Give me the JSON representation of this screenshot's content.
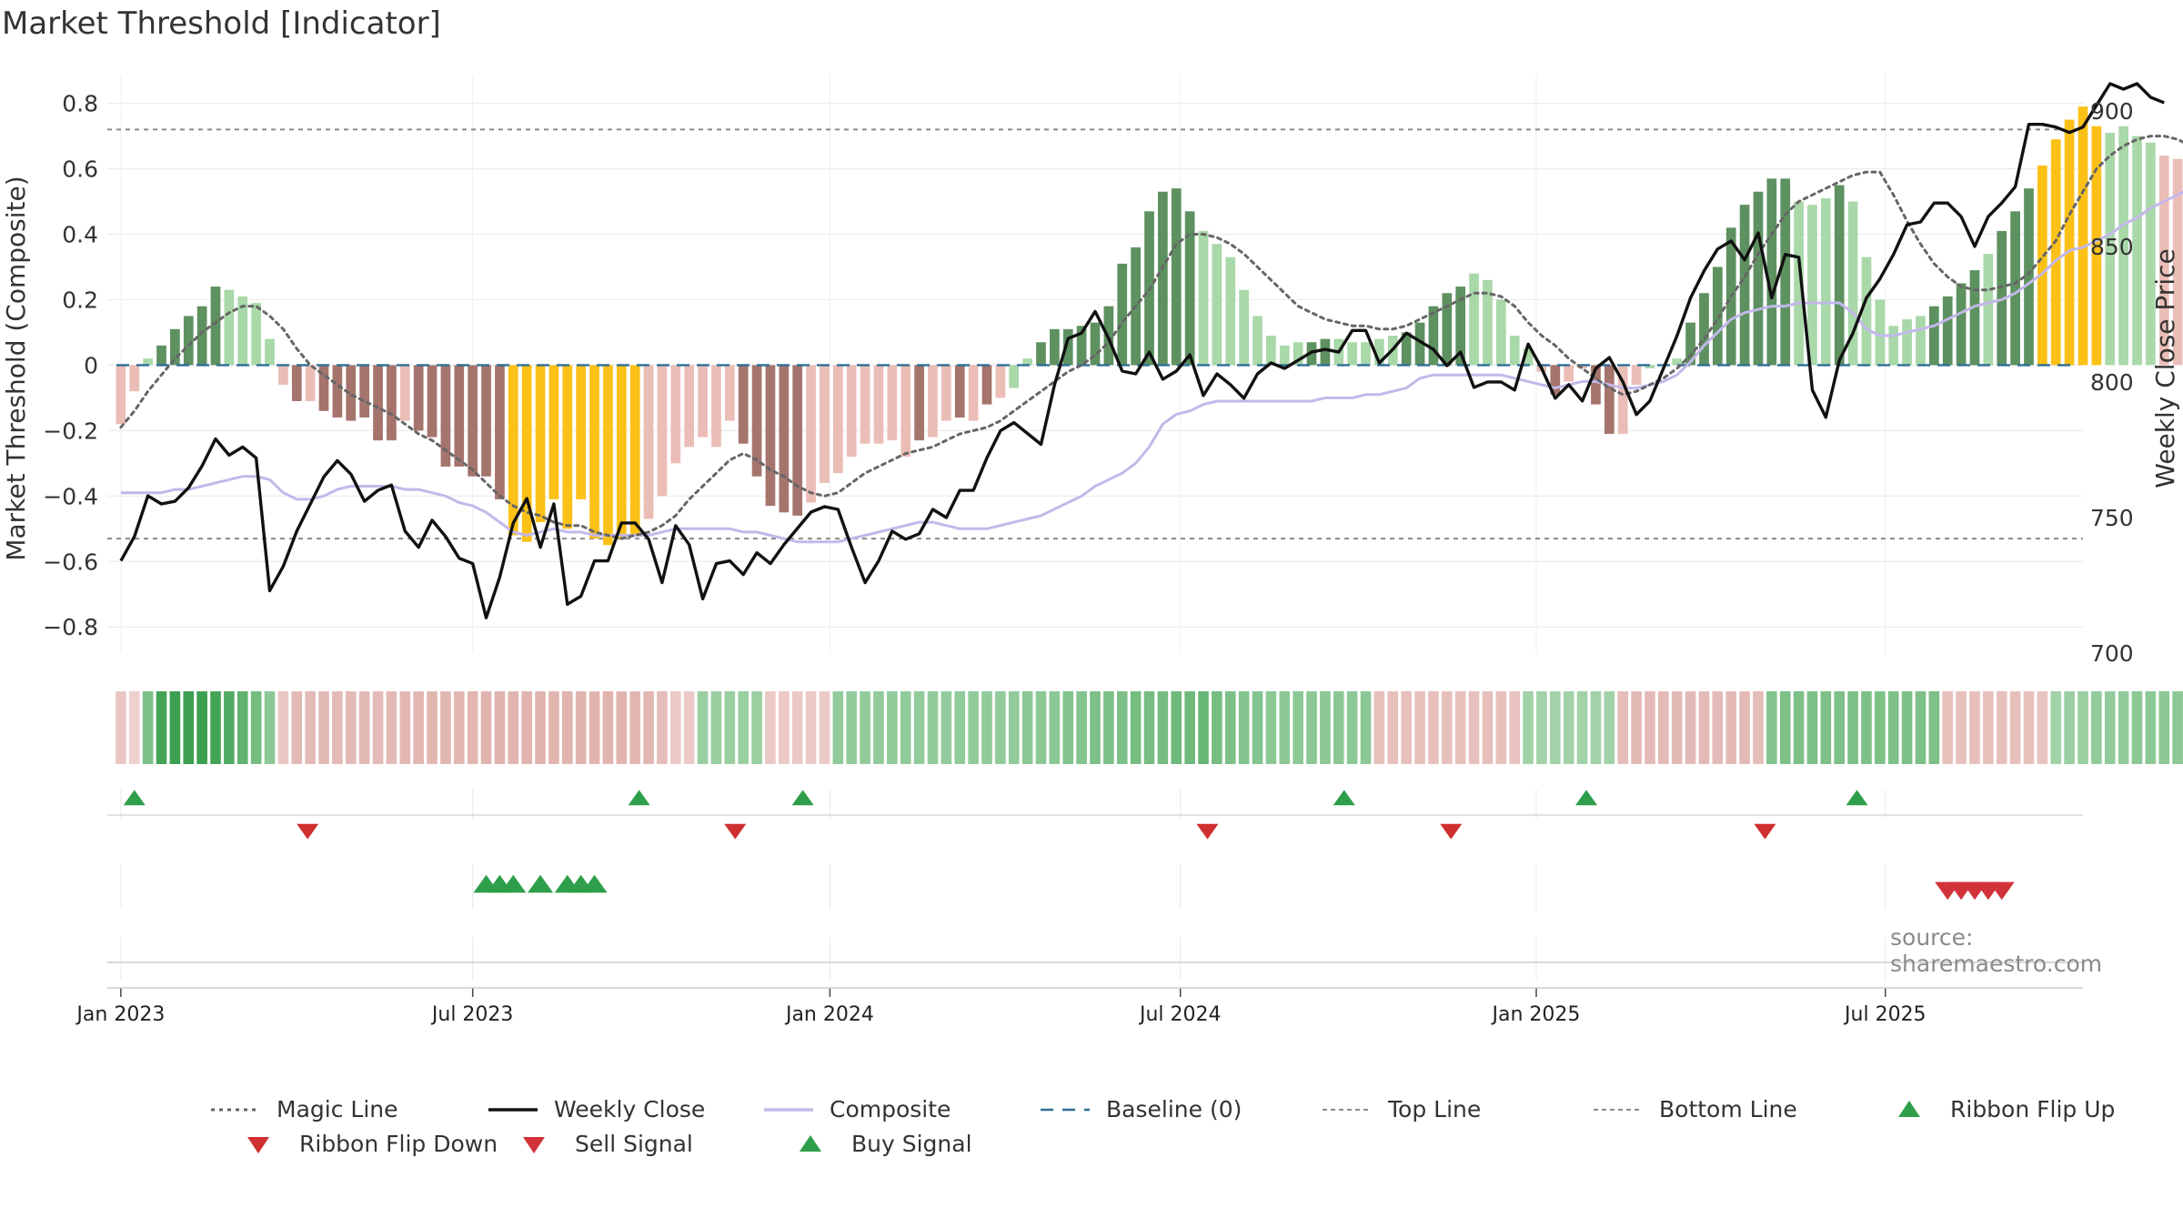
{
  "chart_data": {
    "type": "bar",
    "title": "Market Threshold [Indicator]",
    "ylabel_left": "Market Threshold (Composite)",
    "ylabel_right": "Weekly Close Price",
    "ylim_left": [
      -0.88,
      0.86
    ],
    "ylim_right": [
      700,
      910
    ],
    "yticks_left": [
      "0.8",
      "0.6",
      "0.4",
      "0.2",
      "0",
      "−0.2",
      "−0.4",
      "−0.6",
      "−0.8"
    ],
    "yticks_right": [
      "900",
      "850",
      "800",
      "750",
      "700"
    ],
    "xlim_week": [
      -1,
      145
    ],
    "xticks": [
      {
        "label": "Jan 2023",
        "week": 0
      },
      {
        "label": "Jul 2023",
        "week": 26
      },
      {
        "label": "Jan 2024",
        "week": 52.4
      },
      {
        "label": "Jul 2024",
        "week": 78.3
      },
      {
        "label": "Jan 2025",
        "week": 104.6
      },
      {
        "label": "Jul 2025",
        "week": 130.4
      }
    ],
    "top_line": 0.72,
    "bottom_line": -0.53,
    "composite_bars": [
      -0.18,
      -0.08,
      0.02,
      0.06,
      0.11,
      0.15,
      0.18,
      0.24,
      0.23,
      0.21,
      0.19,
      0.08,
      -0.06,
      -0.11,
      -0.11,
      -0.14,
      -0.16,
      -0.17,
      -0.16,
      -0.23,
      -0.23,
      -0.17,
      -0.2,
      -0.22,
      -0.31,
      -0.31,
      -0.34,
      -0.34,
      -0.41,
      -0.52,
      -0.54,
      -0.48,
      -0.41,
      -0.5,
      -0.41,
      -0.53,
      -0.55,
      -0.53,
      -0.52,
      -0.47,
      -0.4,
      -0.3,
      -0.25,
      -0.22,
      -0.25,
      -0.17,
      -0.24,
      -0.34,
      -0.43,
      -0.45,
      -0.46,
      -0.42,
      -0.36,
      -0.33,
      -0.28,
      -0.24,
      -0.24,
      -0.23,
      -0.28,
      -0.23,
      -0.22,
      -0.17,
      -0.16,
      -0.17,
      -0.12,
      -0.1,
      -0.07,
      0.02,
      0.07,
      0.11,
      0.11,
      0.12,
      0.13,
      0.18,
      0.31,
      0.36,
      0.47,
      0.53,
      0.54,
      0.47,
      0.41,
      0.37,
      0.33,
      0.23,
      0.15,
      0.09,
      0.06,
      0.07,
      0.07,
      0.08,
      0.08,
      0.07,
      0.07,
      0.08,
      0.09,
      0.1,
      0.13,
      0.18,
      0.22,
      0.24,
      0.28,
      0.26,
      0.2,
      0.09,
      0.05,
      -0.02,
      -0.09,
      -0.05,
      -0.01,
      -0.12,
      -0.21,
      -0.21,
      -0.06,
      -0.01,
      0.0,
      0.02,
      0.13,
      0.22,
      0.3,
      0.42,
      0.49,
      0.53,
      0.57,
      0.57,
      0.5,
      0.49,
      0.51,
      0.55,
      0.5,
      0.33,
      0.2,
      0.12,
      0.14,
      0.15,
      0.18,
      0.21,
      0.25,
      0.29,
      0.34,
      0.41,
      0.47,
      0.54,
      0.61,
      0.69,
      0.75,
      0.79,
      0.73,
      0.71,
      0.73,
      0.7,
      0.68,
      0.64,
      0.63,
      0.57
    ],
    "bar_style": [
      "m",
      "m",
      "l",
      "g",
      "g",
      "g",
      "g",
      "g",
      "l",
      "l",
      "l",
      "l",
      "m",
      "r",
      "m",
      "r",
      "r",
      "r",
      "r",
      "r",
      "r",
      "m",
      "r",
      "r",
      "r",
      "r",
      "r",
      "r",
      "r",
      "y",
      "y",
      "y",
      "y",
      "y",
      "y",
      "y",
      "y",
      "y",
      "y",
      "m",
      "m",
      "m",
      "m",
      "m",
      "m",
      "m",
      "r",
      "r",
      "r",
      "r",
      "r",
      "m",
      "m",
      "m",
      "m",
      "m",
      "m",
      "m",
      "m",
      "r",
      "m",
      "m",
      "r",
      "m",
      "r",
      "m",
      "l",
      "l",
      "g",
      "g",
      "g",
      "g",
      "g",
      "g",
      "g",
      "g",
      "g",
      "g",
      "g",
      "g",
      "l",
      "l",
      "l",
      "l",
      "l",
      "l",
      "l",
      "l",
      "g",
      "g",
      "l",
      "l",
      "l",
      "l",
      "l",
      "g",
      "g",
      "g",
      "g",
      "g",
      "l",
      "l",
      "l",
      "l",
      "l",
      "m",
      "r",
      "m",
      "m",
      "r",
      "r",
      "m",
      "m",
      "l",
      "l",
      "l",
      "g",
      "g",
      "g",
      "g",
      "g",
      "g",
      "g",
      "g",
      "l",
      "l",
      "l",
      "g",
      "l",
      "l",
      "l",
      "l",
      "l",
      "l",
      "g",
      "g",
      "g",
      "g",
      "l",
      "g",
      "g",
      "g",
      "y",
      "y",
      "y",
      "y",
      "y",
      "l",
      "l",
      "l",
      "l"
    ],
    "magic_line": [
      -0.19,
      -0.14,
      -0.08,
      -0.03,
      0.02,
      0.06,
      0.1,
      0.13,
      0.16,
      0.18,
      0.18,
      0.15,
      0.11,
      0.05,
      0.0,
      -0.03,
      -0.06,
      -0.09,
      -0.11,
      -0.13,
      -0.15,
      -0.18,
      -0.21,
      -0.23,
      -0.26,
      -0.29,
      -0.32,
      -0.36,
      -0.4,
      -0.43,
      -0.45,
      -0.46,
      -0.48,
      -0.49,
      -0.49,
      -0.51,
      -0.52,
      -0.53,
      -0.52,
      -0.51,
      -0.49,
      -0.46,
      -0.41,
      -0.37,
      -0.33,
      -0.29,
      -0.27,
      -0.29,
      -0.32,
      -0.34,
      -0.37,
      -0.39,
      -0.4,
      -0.39,
      -0.36,
      -0.33,
      -0.31,
      -0.29,
      -0.27,
      -0.26,
      -0.25,
      -0.23,
      -0.21,
      -0.2,
      -0.19,
      -0.17,
      -0.14,
      -0.11,
      -0.08,
      -0.05,
      -0.02,
      0.0,
      0.03,
      0.07,
      0.13,
      0.18,
      0.23,
      0.3,
      0.37,
      0.4,
      0.4,
      0.39,
      0.37,
      0.34,
      0.3,
      0.26,
      0.22,
      0.18,
      0.16,
      0.14,
      0.13,
      0.12,
      0.12,
      0.11,
      0.11,
      0.12,
      0.14,
      0.16,
      0.18,
      0.2,
      0.22,
      0.22,
      0.21,
      0.18,
      0.13,
      0.09,
      0.06,
      0.02,
      -0.01,
      -0.04,
      -0.07,
      -0.09,
      -0.08,
      -0.06,
      -0.04,
      -0.01,
      0.03,
      0.08,
      0.14,
      0.21,
      0.27,
      0.34,
      0.4,
      0.46,
      0.5,
      0.52,
      0.54,
      0.56,
      0.58,
      0.59,
      0.59,
      0.52,
      0.44,
      0.37,
      0.31,
      0.27,
      0.24,
      0.23,
      0.23,
      0.24,
      0.25,
      0.28,
      0.33,
      0.38,
      0.46,
      0.53,
      0.6,
      0.64,
      0.67,
      0.69,
      0.7,
      0.7,
      0.69,
      0.67,
      0.64
    ],
    "composite_line": [
      -0.39,
      -0.39,
      -0.39,
      -0.39,
      -0.38,
      -0.38,
      -0.37,
      -0.36,
      -0.35,
      -0.34,
      -0.34,
      -0.35,
      -0.39,
      -0.41,
      -0.41,
      -0.4,
      -0.38,
      -0.37,
      -0.37,
      -0.37,
      -0.37,
      -0.38,
      -0.38,
      -0.39,
      -0.4,
      -0.42,
      -0.43,
      -0.45,
      -0.48,
      -0.51,
      -0.52,
      -0.51,
      -0.5,
      -0.51,
      -0.51,
      -0.52,
      -0.52,
      -0.52,
      -0.52,
      -0.52,
      -0.51,
      -0.5,
      -0.5,
      -0.5,
      -0.5,
      -0.5,
      -0.51,
      -0.51,
      -0.52,
      -0.53,
      -0.54,
      -0.54,
      -0.54,
      -0.54,
      -0.53,
      -0.52,
      -0.51,
      -0.5,
      -0.49,
      -0.48,
      -0.48,
      -0.49,
      -0.5,
      -0.5,
      -0.5,
      -0.49,
      -0.48,
      -0.47,
      -0.46,
      -0.44,
      -0.42,
      -0.4,
      -0.37,
      -0.35,
      -0.33,
      -0.3,
      -0.25,
      -0.18,
      -0.15,
      -0.14,
      -0.12,
      -0.11,
      -0.11,
      -0.11,
      -0.11,
      -0.11,
      -0.11,
      -0.11,
      -0.11,
      -0.1,
      -0.1,
      -0.1,
      -0.09,
      -0.09,
      -0.08,
      -0.07,
      -0.04,
      -0.03,
      -0.03,
      -0.03,
      -0.03,
      -0.03,
      -0.03,
      -0.04,
      -0.05,
      -0.06,
      -0.07,
      -0.06,
      -0.05,
      -0.05,
      -0.06,
      -0.07,
      -0.07,
      -0.06,
      -0.05,
      -0.03,
      0.01,
      0.06,
      0.1,
      0.14,
      0.16,
      0.17,
      0.18,
      0.18,
      0.19,
      0.19,
      0.19,
      0.19,
      0.16,
      0.11,
      0.09,
      0.09,
      0.1,
      0.11,
      0.12,
      0.14,
      0.16,
      0.18,
      0.19,
      0.2,
      0.22,
      0.25,
      0.28,
      0.32,
      0.35,
      0.36,
      0.38,
      0.4,
      0.43,
      0.45,
      0.48,
      0.5,
      0.52,
      0.54,
      0.57,
      0.58
    ],
    "weekly_close": [
      734,
      743,
      758,
      755,
      756,
      761,
      769,
      779,
      773,
      776,
      772,
      723,
      732,
      745,
      755,
      765,
      771,
      766,
      756,
      760,
      762,
      745,
      739,
      749,
      743,
      735,
      733,
      713,
      728,
      748,
      757,
      739,
      755,
      718,
      721,
      734,
      734,
      748,
      748,
      742,
      726,
      747,
      740,
      720,
      733,
      734,
      729,
      737,
      733,
      740,
      746,
      752,
      754,
      753,
      739,
      726,
      734,
      745,
      742,
      744,
      753,
      750,
      760,
      760,
      772,
      782,
      785,
      781,
      777,
      799,
      816,
      818,
      826,
      816,
      804,
      803,
      811,
      801,
      804,
      810,
      795,
      803,
      799,
      794,
      803,
      807,
      805,
      808,
      811,
      812,
      811,
      819,
      819,
      807,
      812,
      818,
      815,
      812,
      806,
      811,
      798,
      800,
      800,
      797,
      814,
      805,
      794,
      799,
      793,
      805,
      809,
      800,
      788,
      793,
      805,
      817,
      831,
      841,
      849,
      852,
      845,
      855,
      831,
      847,
      846,
      797,
      787,
      808,
      818,
      831,
      838,
      847,
      858,
      859,
      866,
      866,
      861,
      850,
      861,
      866,
      872,
      895,
      895,
      894,
      892,
      894,
      902,
      910,
      908,
      910,
      905,
      903
    ],
    "ribbon_strength": [
      -0.35,
      -0.2,
      0.55,
      0.95,
      1.0,
      1.0,
      1.0,
      0.95,
      0.85,
      0.75,
      0.6,
      0.45,
      -0.35,
      -0.55,
      -0.55,
      -0.55,
      -0.55,
      -0.55,
      -0.55,
      -0.55,
      -0.55,
      -0.6,
      -0.6,
      -0.6,
      -0.6,
      -0.6,
      -0.6,
      -0.65,
      -0.65,
      -0.65,
      -0.65,
      -0.65,
      -0.65,
      -0.65,
      -0.65,
      -0.65,
      -0.65,
      -0.65,
      -0.6,
      -0.6,
      -0.5,
      -0.3,
      -0.3,
      0.35,
      0.35,
      0.35,
      0.35,
      0.35,
      -0.3,
      -0.3,
      -0.3,
      -0.3,
      -0.3,
      0.4,
      0.4,
      0.4,
      0.4,
      0.4,
      0.4,
      0.4,
      0.4,
      0.4,
      0.4,
      0.4,
      0.4,
      0.4,
      0.4,
      0.45,
      0.45,
      0.45,
      0.5,
      0.5,
      0.55,
      0.55,
      0.55,
      0.6,
      0.6,
      0.6,
      0.65,
      0.65,
      0.7,
      0.6,
      0.55,
      0.5,
      0.5,
      0.45,
      0.45,
      0.45,
      0.45,
      0.45,
      0.45,
      0.45,
      0.45,
      -0.45,
      -0.45,
      -0.45,
      -0.45,
      -0.45,
      -0.45,
      -0.45,
      -0.45,
      -0.45,
      -0.45,
      -0.4,
      0.3,
      0.3,
      0.3,
      0.3,
      0.3,
      0.3,
      0.3,
      -0.5,
      -0.55,
      -0.55,
      -0.55,
      -0.55,
      -0.55,
      -0.55,
      -0.55,
      -0.55,
      -0.55,
      -0.5,
      0.5,
      0.55,
      0.55,
      0.55,
      0.55,
      0.55,
      0.55,
      0.55,
      0.55,
      0.55,
      0.55,
      0.55,
      0.55,
      -0.45,
      -0.45,
      -0.45,
      -0.45,
      -0.45,
      -0.45,
      -0.45,
      -0.4,
      0.3,
      0.35,
      0.35,
      0.4,
      0.4,
      0.4,
      0.45,
      0.45,
      0.45,
      0.45,
      0.45,
      0.45,
      0.45,
      0.45,
      0.45,
      0.45,
      0.45,
      0.4
    ],
    "ribbon_flip_up": [
      1,
      38.3,
      50.4,
      90.4,
      108.3,
      128.3
    ],
    "ribbon_flip_down": [
      13.8,
      45.4,
      80.3,
      98.3,
      121.5
    ],
    "buy_signals": [
      27,
      28,
      29,
      31,
      33,
      34,
      35
    ],
    "sell_signals": [
      135,
      136,
      137,
      138,
      139
    ]
  },
  "colors": {
    "bar_green_dark": "#5e9160",
    "bar_green_light": "#a9d8a9",
    "bar_pink": "#ebbdb7",
    "bar_brown": "#a5746d",
    "bar_yellow": "#fbc117",
    "weekly_close": "#111111",
    "composite": "#c3b8ea",
    "magic_line": "#666666",
    "baseline": "#2e6e96",
    "guide_line": "#8a8a8a",
    "signal_up": "#2e9e4a",
    "signal_down": "#d2333a"
  },
  "source_note": "source: sharemaestro.com",
  "legend": [
    {
      "label": "Magic Line",
      "symbol": "dotted-line"
    },
    {
      "label": "Weekly Close",
      "symbol": "solid-line"
    },
    {
      "label": "Composite",
      "symbol": "composite-line"
    },
    {
      "label": "Baseline (0)",
      "symbol": "dashed-line"
    },
    {
      "label": "Top Line",
      "symbol": "thin-dashed-line"
    },
    {
      "label": "Bottom Line",
      "symbol": "thin-dashed-line"
    },
    {
      "label": "Ribbon Flip Up",
      "symbol": "triangle-up-green"
    },
    {
      "label": "Ribbon Flip Down",
      "symbol": "triangle-down-darkred"
    },
    {
      "label": "Sell Signal",
      "symbol": "triangle-down-red"
    },
    {
      "label": "Buy Signal",
      "symbol": "triangle-up-green"
    }
  ]
}
